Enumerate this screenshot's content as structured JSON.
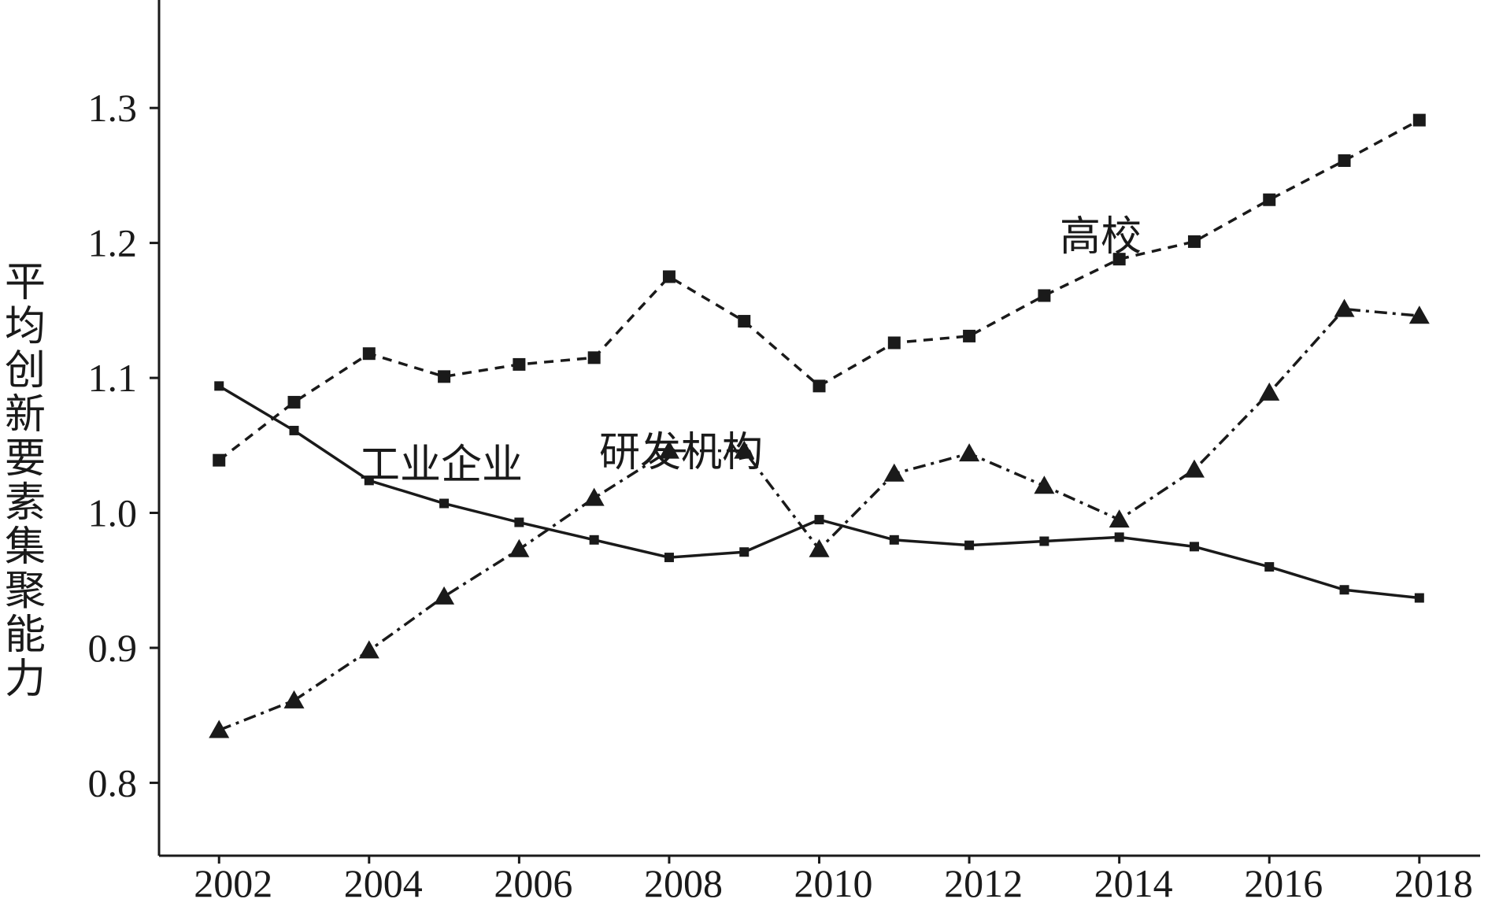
{
  "chart_data": {
    "type": "line",
    "y_label": "平均创新要素集聚能力",
    "x": [
      2002,
      2003,
      2004,
      2005,
      2006,
      2007,
      2008,
      2009,
      2010,
      2011,
      2012,
      2013,
      2014,
      2015,
      2016,
      2017,
      2018
    ],
    "series": [
      {
        "name": "工业企业",
        "color": "#1a1a1a",
        "style": "solid",
        "marker": "plus",
        "values": [
          1.094,
          1.061,
          1.024,
          1.007,
          0.993,
          0.98,
          0.967,
          0.971,
          0.995,
          0.98,
          0.976,
          0.979,
          0.982,
          0.975,
          0.96,
          0.943,
          0.937
        ]
      },
      {
        "name": "研发机构",
        "color": "#1a1a1a",
        "style": "dashdot",
        "marker": "triangle",
        "values": [
          0.839,
          0.861,
          0.898,
          0.938,
          0.973,
          1.011,
          1.046,
          1.046,
          0.973,
          1.029,
          1.044,
          1.02,
          0.995,
          1.032,
          1.089,
          1.151,
          1.146
        ]
      },
      {
        "name": "高校",
        "color": "#1a1a1a",
        "style": "dashed",
        "marker": "square",
        "values": [
          1.039,
          1.082,
          1.118,
          1.101,
          1.11,
          1.115,
          1.175,
          1.142,
          1.094,
          1.126,
          1.131,
          1.161,
          1.188,
          1.201,
          1.232,
          1.261,
          1.291
        ]
      }
    ],
    "xlim": [
      2001.2,
      2018.81
    ],
    "xticks": [
      2002,
      2004,
      2006,
      2008,
      2010,
      2012,
      2014,
      2016,
      2018
    ],
    "ylim": [
      0.746,
      1.38
    ],
    "yticks": [
      0.8,
      0.9,
      {
        "value": 1,
        "label": "1.0"
      },
      1.1,
      1.2,
      1.3
    ],
    "grid": false
  }
}
